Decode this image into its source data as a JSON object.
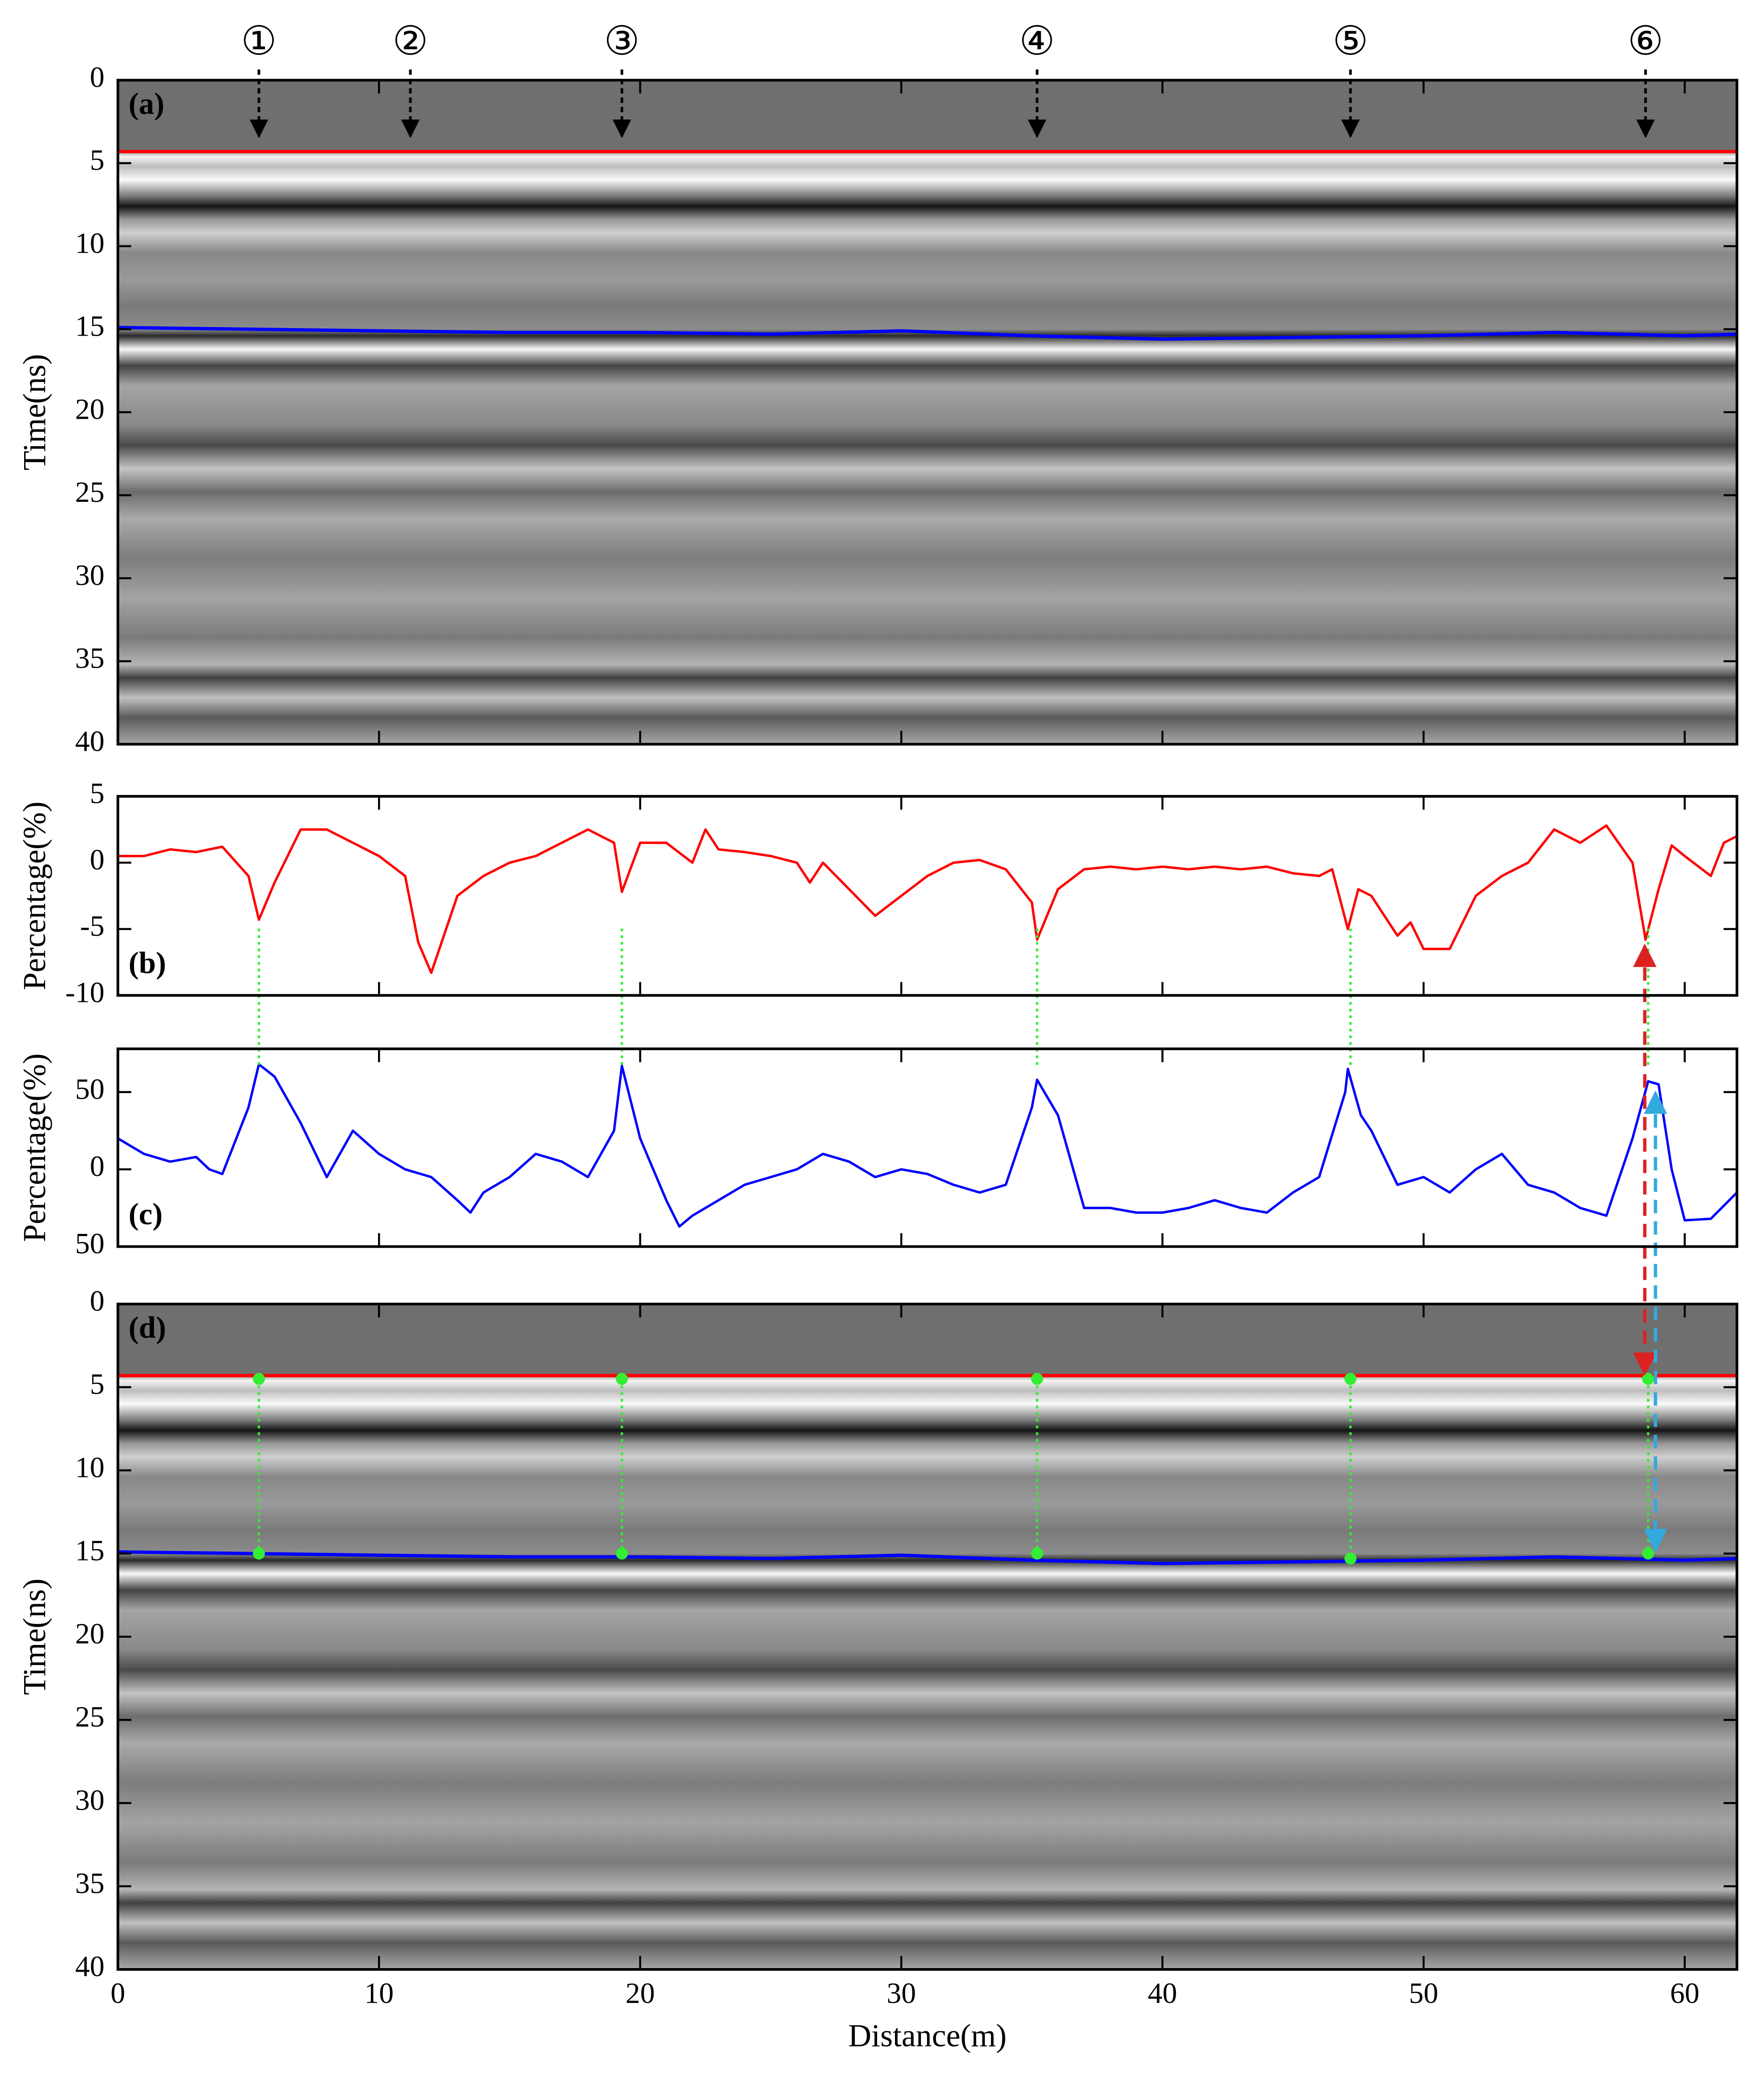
{
  "chart_data": [
    {
      "type": "radargram",
      "panel_label": "(a)",
      "ylabel": "Time(ns)",
      "xlim": [
        0,
        62
      ],
      "xticks": [
        0,
        10,
        20,
        30,
        40,
        50,
        60
      ],
      "xtick_labels": false,
      "ylim": [
        0,
        40
      ],
      "y_reversed": true,
      "yticks": [
        0,
        5,
        10,
        15,
        20,
        25,
        30,
        35,
        40
      ],
      "lines": [
        {
          "color": "#ff0000",
          "x": [
            0,
            62
          ],
          "values": [
            4.3,
            4.3
          ]
        },
        {
          "color": "#0000ff",
          "x": [
            0,
            5,
            10,
            15,
            20,
            25,
            30,
            35,
            40,
            45,
            50,
            55,
            60,
            62
          ],
          "values": [
            14.9,
            15,
            15.1,
            15.2,
            15.2,
            15.3,
            15.1,
            15.4,
            15.6,
            15.5,
            15.4,
            15.2,
            15.4,
            15.3
          ]
        }
      ],
      "annotations": [
        {
          "text": "①",
          "x": 5.4
        },
        {
          "text": "②",
          "x": 11.2
        },
        {
          "text": "③",
          "x": 19.3
        },
        {
          "text": "④",
          "x": 35.2
        },
        {
          "text": "⑤",
          "x": 47.2
        },
        {
          "text": "⑥",
          "x": 58.5
        }
      ]
    },
    {
      "type": "line",
      "panel_label": "(b)",
      "ylabel": "Percentage(%)",
      "xlim": [
        0,
        62
      ],
      "xticks": [
        0,
        10,
        20,
        30,
        40,
        50,
        60
      ],
      "xtick_labels": false,
      "ylim": [
        -10,
        5
      ],
      "yticks": [
        5,
        0,
        -5,
        -10
      ],
      "series": [
        {
          "color": "#ff0000",
          "x": [
            0,
            1,
            2,
            3,
            4,
            5,
            5.4,
            6,
            7,
            8,
            9,
            10,
            11,
            11.5,
            12,
            13,
            14,
            15,
            16,
            17,
            18,
            19,
            19.3,
            20,
            21,
            22,
            22.5,
            23,
            24,
            25,
            26,
            26.5,
            27,
            28,
            29,
            30,
            31,
            32,
            33,
            34,
            35,
            35.2,
            36,
            37,
            38,
            39,
            40,
            41,
            42,
            43,
            44,
            45,
            46,
            46.5,
            47.1,
            47.5,
            48,
            49,
            49.5,
            50,
            51,
            52,
            53,
            54,
            55,
            56,
            57,
            58,
            58.5,
            59,
            59.5,
            60,
            61,
            61.5,
            62
          ],
          "values": [
            0.5,
            0.5,
            1,
            0.8,
            1.2,
            -1,
            -4.3,
            -1.5,
            2.5,
            2.5,
            1.5,
            0.5,
            -1,
            -6,
            -8.3,
            -2.5,
            -1,
            0,
            0.5,
            1.5,
            2.5,
            1.5,
            -2.2,
            1.5,
            1.5,
            0,
            2.5,
            1,
            0.8,
            0.5,
            0,
            -1.5,
            0,
            -2,
            -4,
            -2.5,
            -1,
            0,
            0.2,
            -0.5,
            -3,
            -5.8,
            -2,
            -0.5,
            -0.3,
            -0.5,
            -0.3,
            -0.5,
            -0.3,
            -0.5,
            -0.3,
            -0.8,
            -1,
            -0.5,
            -5,
            -2,
            -2.5,
            -5.5,
            -4.5,
            -6.5,
            -6.5,
            -2.5,
            -1,
            0,
            2.5,
            1.5,
            2.8,
            0,
            -5.8,
            -2,
            1.3,
            0.5,
            -1,
            1.5,
            2
          ]
        }
      ]
    },
    {
      "type": "line",
      "panel_label": "(c)",
      "ylabel": "Percentage(%)",
      "xlim": [
        0,
        62
      ],
      "xticks": [
        0,
        10,
        20,
        30,
        40,
        50,
        60
      ],
      "xtick_labels": false,
      "ylim": [
        -50,
        78
      ],
      "yticks": [
        50,
        0,
        {
          "value": -50,
          "label": "50"
        }
      ],
      "series": [
        {
          "color": "#0000ff",
          "x": [
            0,
            1,
            2,
            3,
            3.5,
            4,
            5,
            5.4,
            6,
            7,
            8,
            9,
            10,
            11,
            12,
            13,
            13.5,
            14,
            15,
            16,
            17,
            18,
            19,
            19.3,
            20,
            21,
            21.5,
            22,
            23,
            24,
            25,
            26,
            27,
            28,
            29,
            30,
            31,
            32,
            33,
            34,
            35,
            35.2,
            36,
            37,
            38,
            39,
            40,
            41,
            42,
            43,
            44,
            45,
            46,
            47,
            47.1,
            47.6,
            48,
            49,
            50,
            51,
            52,
            53,
            54,
            55,
            56,
            57,
            58,
            58.6,
            59,
            59.5,
            60,
            61,
            62
          ],
          "values": [
            20,
            10,
            5,
            8,
            0,
            -3,
            40,
            68,
            60,
            30,
            -5,
            25,
            10,
            0,
            -5,
            -20,
            -28,
            -15,
            -5,
            10,
            5,
            -5,
            25,
            67,
            20,
            -20,
            -37,
            -30,
            -20,
            -10,
            -5,
            0,
            10,
            5,
            -5,
            0,
            -3,
            -10,
            -15,
            -10,
            40,
            58,
            35,
            -25,
            -25,
            -28,
            -28,
            -25,
            -20,
            -25,
            -28,
            -15,
            -5,
            50,
            65,
            35,
            25,
            -10,
            -5,
            -15,
            0,
            10,
            -10,
            -15,
            -25,
            -30,
            20,
            57,
            55,
            0,
            -33,
            -32,
            -15
          ]
        }
      ]
    },
    {
      "type": "radargram",
      "panel_label": "(d)",
      "ylabel": "Time(ns)",
      "xlabel": "Distance(m)",
      "xlim": [
        0,
        62
      ],
      "xticks": [
        0,
        10,
        20,
        30,
        40,
        50,
        60
      ],
      "xtick_labels": true,
      "ylim": [
        0,
        40
      ],
      "y_reversed": true,
      "yticks": [
        0,
        5,
        10,
        15,
        20,
        25,
        30,
        35,
        40
      ],
      "lines": [
        {
          "color": "#ff0000",
          "x": [
            0,
            62
          ],
          "values": [
            4.3,
            4.3
          ]
        },
        {
          "color": "#0000ff",
          "x": [
            0,
            5,
            10,
            15,
            20,
            25,
            30,
            35,
            40,
            45,
            50,
            55,
            60,
            62
          ],
          "values": [
            14.9,
            15,
            15.1,
            15.2,
            15.2,
            15.3,
            15.1,
            15.4,
            15.6,
            15.5,
            15.4,
            15.2,
            15.4,
            15.3
          ]
        }
      ],
      "markers": {
        "color": "#33ee33",
        "x": [
          5.4,
          19.3,
          35.2,
          47.2,
          58.6
        ],
        "top": [
          4.5,
          4.5,
          4.5,
          4.5,
          4.5
        ],
        "bottom": [
          15,
          15,
          15,
          15.3,
          15
        ]
      }
    }
  ]
}
